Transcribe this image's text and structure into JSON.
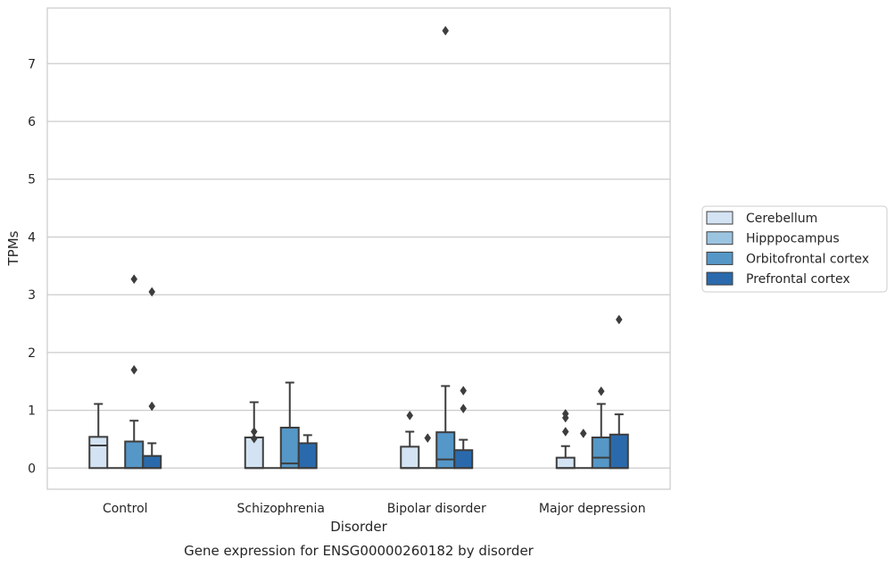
{
  "chart_data": {
    "type": "box",
    "caption": "Gene expression for ENSG00000260182 by disorder",
    "xlabel": "Disorder",
    "ylabel": "TPMs",
    "categories": [
      "Control",
      "Schizophrenia",
      "Bipolar disorder",
      "Major depression"
    ],
    "ylim": [
      -0.37,
      7.97
    ],
    "yticks": [
      0,
      1,
      2,
      3,
      4,
      5,
      6,
      7
    ],
    "grid": "horizontal",
    "legend_position": "right",
    "series": [
      {
        "name": "Cerebellum",
        "color": "#d3e3f3",
        "boxes": [
          {
            "min": 0,
            "q1": 0,
            "median": 0.39,
            "q3": 0.54,
            "max": 1.11,
            "outliers": []
          },
          {
            "min": 0,
            "q1": 0,
            "median": 0,
            "q3": 0.53,
            "max": 1.14,
            "outliers": [
              0.63,
              0.51
            ]
          },
          {
            "min": 0,
            "q1": 0,
            "median": 0,
            "q3": 0.37,
            "max": 0.63,
            "outliers": [
              0.91
            ]
          },
          {
            "min": 0,
            "q1": 0,
            "median": 0,
            "q3": 0.18,
            "max": 0.38,
            "outliers": [
              0.94,
              0.87,
              0.63
            ]
          }
        ]
      },
      {
        "name": "Hipppocampus",
        "color": "#9bc4e0",
        "boxes": [
          {
            "min": 0,
            "q1": 0,
            "median": 0,
            "q3": 0,
            "max": 0,
            "outliers": []
          },
          {
            "min": 0,
            "q1": 0,
            "median": 0,
            "q3": 0,
            "max": 0,
            "outliers": []
          },
          {
            "min": 0,
            "q1": 0,
            "median": 0,
            "q3": 0,
            "max": 0,
            "outliers": [
              0.52
            ]
          },
          {
            "min": 0,
            "q1": 0,
            "median": 0,
            "q3": 0,
            "max": 0,
            "outliers": [
              0.6
            ]
          }
        ]
      },
      {
        "name": "Orbitofrontal cortex",
        "color": "#5597c7",
        "boxes": [
          {
            "min": 0,
            "q1": 0,
            "median": 0,
            "q3": 0.46,
            "max": 0.82,
            "outliers": [
              3.27,
              1.7
            ]
          },
          {
            "min": 0,
            "q1": 0,
            "median": 0.08,
            "q3": 0.7,
            "max": 1.48,
            "outliers": []
          },
          {
            "min": 0,
            "q1": 0,
            "median": 0.15,
            "q3": 0.62,
            "max": 1.42,
            "outliers": [
              7.57
            ]
          },
          {
            "min": 0,
            "q1": 0,
            "median": 0.18,
            "q3": 0.53,
            "max": 1.11,
            "outliers": [
              1.33
            ]
          }
        ]
      },
      {
        "name": "Prefrontal cortex",
        "color": "#2a6aac",
        "boxes": [
          {
            "min": 0,
            "q1": 0,
            "median": 0,
            "q3": 0.21,
            "max": 0.43,
            "outliers": [
              3.05,
              1.07
            ]
          },
          {
            "min": 0,
            "q1": 0,
            "median": 0,
            "q3": 0.43,
            "max": 0.57,
            "outliers": []
          },
          {
            "min": 0,
            "q1": 0,
            "median": 0,
            "q3": 0.31,
            "max": 0.49,
            "outliers": [
              1.34,
              1.03
            ]
          },
          {
            "min": 0,
            "q1": 0,
            "median": 0,
            "q3": 0.58,
            "max": 0.93,
            "outliers": [
              2.57
            ]
          }
        ]
      }
    ]
  }
}
